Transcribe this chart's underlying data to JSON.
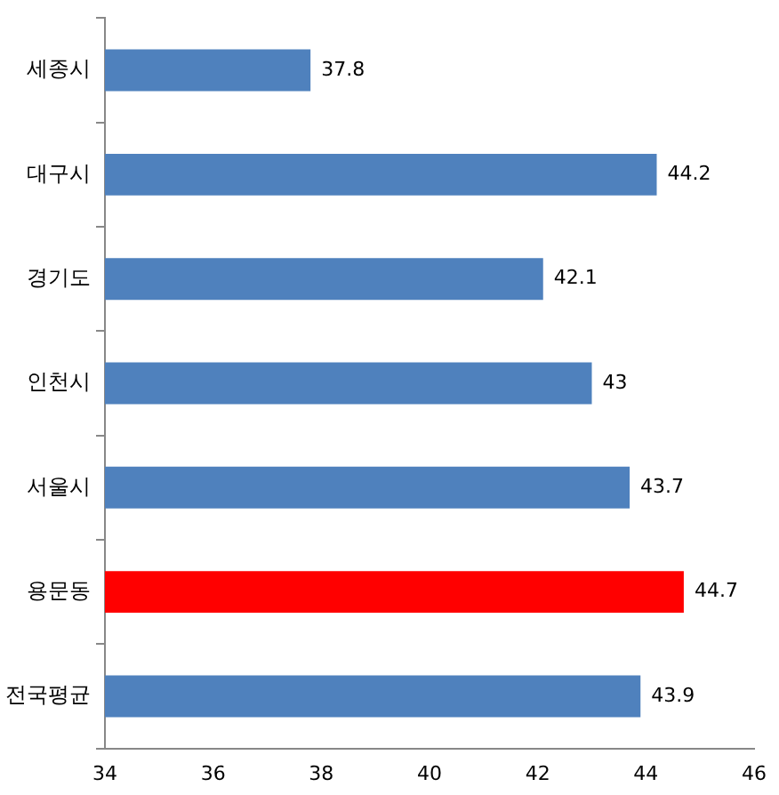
{
  "chart_data": {
    "type": "bar",
    "orientation": "horizontal",
    "categories": [
      "세종시",
      "대구시",
      "경기도",
      "인천시",
      "서울시",
      "용문동",
      "전국평균"
    ],
    "values": [
      37.8,
      44.2,
      42.1,
      43,
      43.7,
      44.7,
      43.9
    ],
    "colors": [
      "#4f81bd",
      "#4f81bd",
      "#4f81bd",
      "#4f81bd",
      "#4f81bd",
      "#ff0000",
      "#4f81bd"
    ],
    "xlim": [
      34,
      46
    ],
    "xticks": [
      34,
      36,
      38,
      40,
      42,
      44,
      46
    ],
    "grid": false,
    "legend": false,
    "data_labels": true
  }
}
